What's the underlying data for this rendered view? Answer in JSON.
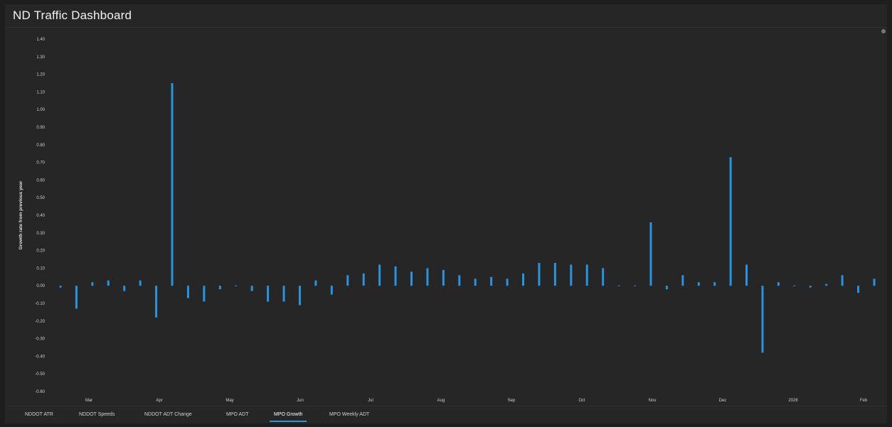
{
  "header": {
    "title": "ND Traffic Dashboard"
  },
  "tabs": [
    {
      "label": "NDDOT ATR",
      "active": false
    },
    {
      "label": "NDDOT Speeds",
      "active": false
    },
    {
      "label": "NDDOT ADT Change",
      "active": false
    },
    {
      "label": "MPO ADT",
      "active": false
    },
    {
      "label": "MPO Growth",
      "active": true
    },
    {
      "label": "MPO Weekly ADT",
      "active": false
    }
  ],
  "colors": {
    "bar": "#2a93e0",
    "background": "#262626",
    "accent": "#2a93e0"
  },
  "chart_data": {
    "type": "bar",
    "ylabel": "Growth rate from previous year",
    "ylim": [
      -0.6,
      1.4
    ],
    "yticks": [
      1.4,
      1.3,
      1.2,
      1.1,
      1.0,
      0.9,
      0.8,
      0.7,
      0.6,
      0.5,
      0.4,
      0.3,
      0.2,
      0.1,
      0.0,
      -0.1,
      -0.2,
      -0.3,
      -0.4,
      -0.5,
      -0.6
    ],
    "ytick_labels": [
      "1.40",
      "1.30",
      "1.20",
      "1.10",
      "1.00",
      "0.90",
      "0.80",
      "0.70",
      "0.60",
      "0.50",
      "0.40",
      "0.30",
      "0.20",
      "0.10",
      "0.00",
      "-0.10",
      "-0.20",
      "-0.30",
      "-0.40",
      "-0.50",
      "-0.60"
    ],
    "xtick_labels": [
      "Mar",
      "Apr",
      "May",
      "Jun",
      "Jul",
      "Aug",
      "Sep",
      "Oct",
      "Nov",
      "Dec",
      "2026",
      "Feb"
    ],
    "grid": false,
    "series": [
      {
        "values": [
          -0.01,
          -0.13,
          0.02,
          0.03,
          -0.03,
          0.03,
          -0.18,
          1.15,
          -0.07,
          -0.09,
          -0.02,
          0.0,
          -0.03,
          -0.09,
          -0.09,
          -0.11,
          0.03,
          -0.05,
          0.06,
          0.07,
          0.12,
          0.11,
          0.08,
          0.1,
          0.09,
          0.06,
          0.04,
          0.05,
          0.04,
          0.07,
          0.13,
          0.13,
          0.12,
          0.12,
          0.1,
          0.0,
          0.0,
          0.36,
          -0.02,
          0.06,
          0.02,
          0.02,
          0.73,
          0.12,
          -0.38,
          0.02,
          0.0,
          -0.01,
          0.01,
          0.06,
          -0.04,
          0.04
        ]
      }
    ]
  }
}
